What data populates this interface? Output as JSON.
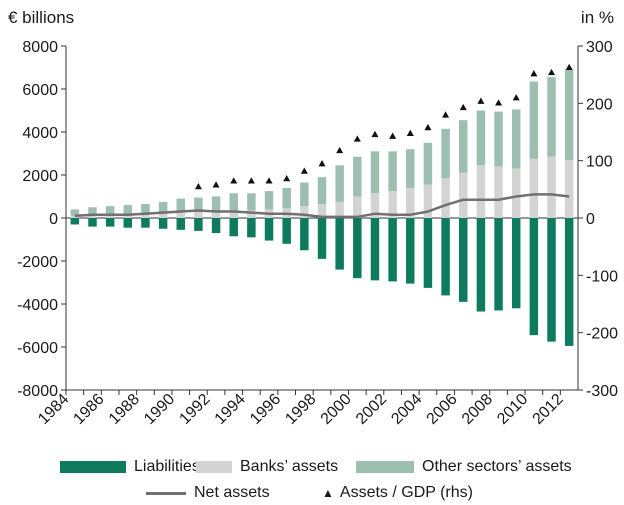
{
  "chart_data": {
    "type": "bar",
    "left_unit": "€ billions",
    "right_unit": "in %",
    "ylim": [
      -8000,
      8000
    ],
    "y_ticks": [
      8000,
      6000,
      4000,
      2000,
      0,
      -2000,
      -4000,
      -6000,
      -8000
    ],
    "y2lim": [
      -300,
      300
    ],
    "y2_ticks": [
      300,
      200,
      100,
      0,
      -100,
      -200,
      -300
    ],
    "categories": [
      1984,
      1985,
      1986,
      1987,
      1988,
      1989,
      1990,
      1991,
      1992,
      1993,
      1994,
      1995,
      1996,
      1997,
      1998,
      1999,
      2000,
      2001,
      2002,
      2003,
      2004,
      2005,
      2006,
      2007,
      2008,
      2009,
      2010,
      2011,
      2012
    ],
    "x_tick_labels": [
      "1984",
      "1986",
      "1988",
      "1990",
      "1992",
      "1994",
      "1996",
      "1998",
      "2000",
      "2002",
      "2004",
      "2006",
      "2008",
      "2010",
      "2012"
    ],
    "series": [
      {
        "name": "Liabilities",
        "color": "#0e7a5e",
        "stack": "neg",
        "values": [
          -300,
          -400,
          -400,
          -450,
          -450,
          -500,
          -550,
          -600,
          -700,
          -850,
          -900,
          -1050,
          -1200,
          -1500,
          -1900,
          -2400,
          -2800,
          -2900,
          -2950,
          -3050,
          -3250,
          -3600,
          -3900,
          -4350,
          -4300,
          -4200,
          -5450,
          -5750,
          -5950
        ]
      },
      {
        "name": "Banks’ assets",
        "color": "#d3d3d3",
        "stack": "pos",
        "values": [
          100,
          150,
          150,
          200,
          200,
          200,
          250,
          300,
          300,
          350,
          350,
          400,
          450,
          550,
          650,
          750,
          1000,
          1150,
          1250,
          1400,
          1550,
          1850,
          2100,
          2450,
          2400,
          2300,
          2750,
          2850,
          2700
        ]
      },
      {
        "name": "Other sectors’ assets",
        "color": "#9dbfb0",
        "stack": "pos",
        "values": [
          300,
          350,
          400,
          400,
          450,
          550,
          650,
          650,
          700,
          800,
          800,
          850,
          950,
          1100,
          1250,
          1700,
          1850,
          1950,
          1850,
          1800,
          1950,
          2300,
          2450,
          2550,
          2550,
          2750,
          3600,
          3700,
          4200
        ]
      }
    ],
    "net_assets": {
      "name": "Net assets",
      "color": "#707070",
      "values": [
        100,
        150,
        150,
        150,
        200,
        250,
        300,
        350,
        300,
        300,
        250,
        200,
        200,
        150,
        50,
        50,
        50,
        200,
        150,
        150,
        300,
        600,
        850,
        850,
        850,
        1000,
        1100,
        1100,
        1000
      ]
    },
    "gdp_ratio": {
      "name": "Assets / GDP (rhs)",
      "color": "#111111",
      "x": [
        1991,
        1992,
        1993,
        1994,
        1995,
        1996,
        1997,
        1998,
        1999,
        2000,
        2001,
        2002,
        2003,
        2004,
        2005,
        2006,
        2007,
        2008,
        2009,
        2010,
        2011,
        2012
      ],
      "values": [
        55,
        58,
        65,
        65,
        65,
        69,
        82,
        95,
        118,
        138,
        146,
        143,
        148,
        158,
        180,
        193,
        204,
        201,
        210,
        252,
        254,
        263
      ]
    }
  },
  "legend": {
    "liabilities": "Liabilities",
    "banks": "Banks’ assets",
    "other": "Other sectors’ assets",
    "net": "Net assets",
    "gdp": "Assets / GDP (rhs)"
  },
  "colors": {
    "liabilities": "#0e7a5e",
    "banks": "#d3d3d3",
    "other": "#9dbfb0",
    "net": "#707070",
    "gdp": "#111111"
  }
}
